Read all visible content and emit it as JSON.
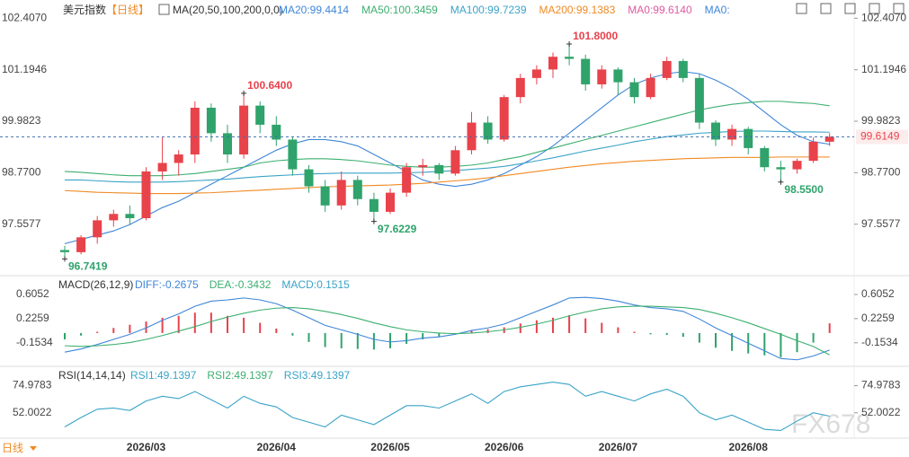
{
  "chart_data": {
    "type": "candlestick",
    "title": "美元指数",
    "period": "【日线】",
    "ma_label": "MA(20,50,100,200,0,0)",
    "extra_legend": [
      "MA0:99.6140",
      "MA0:"
    ],
    "timeframe": "日线",
    "watermark": "FX678",
    "up_color": "#e8424b",
    "down_color": "#2fa36b",
    "ylim": [
      96.39,
      102.73
    ],
    "yticks": [
      {
        "value": 97.5577,
        "label": "97.5577"
      },
      {
        "value": 98.77,
        "label": "98.7700"
      },
      {
        "value": 99.9823,
        "label": "99.9823"
      },
      {
        "value": 101.1946,
        "label": "101.1946"
      },
      {
        "value": 102.407,
        "label": "102.4070"
      }
    ],
    "last_price": 99.6149,
    "categories": [
      null,
      null,
      null,
      null,
      null,
      "2026/03",
      null,
      null,
      null,
      null,
      null,
      null,
      null,
      "2026/04",
      null,
      null,
      null,
      null,
      null,
      null,
      "2026/05",
      null,
      null,
      null,
      null,
      null,
      null,
      "2026/06",
      null,
      null,
      null,
      null,
      null,
      null,
      "2026/07",
      null,
      null,
      null,
      null,
      null,
      null,
      null,
      "2026/08",
      null,
      null,
      null,
      null,
      null
    ],
    "candles": [
      [
        96.95,
        97.05,
        96.7419,
        96.9
      ],
      [
        96.9,
        97.3,
        96.85,
        97.25
      ],
      [
        97.25,
        97.75,
        97.1,
        97.65
      ],
      [
        97.65,
        97.9,
        97.5,
        97.8
      ],
      [
        97.8,
        98.0,
        97.55,
        97.7
      ],
      [
        97.7,
        98.9,
        97.65,
        98.8
      ],
      [
        98.8,
        99.6,
        98.6,
        99.0
      ],
      [
        99.0,
        99.3,
        98.7,
        99.2
      ],
      [
        99.2,
        100.45,
        99.0,
        100.3
      ],
      [
        100.3,
        100.4,
        99.5,
        99.7
      ],
      [
        99.7,
        99.9,
        99.0,
        99.2
      ],
      [
        99.2,
        100.64,
        99.1,
        100.35
      ],
      [
        100.35,
        100.45,
        99.7,
        99.9
      ],
      [
        99.9,
        100.1,
        99.4,
        99.55
      ],
      [
        99.55,
        99.6,
        98.7,
        98.85
      ],
      [
        98.85,
        98.95,
        98.3,
        98.45
      ],
      [
        98.45,
        98.6,
        97.85,
        98.0
      ],
      [
        98.0,
        98.8,
        97.9,
        98.6
      ],
      [
        98.6,
        98.7,
        98.0,
        98.15
      ],
      [
        98.15,
        98.3,
        97.6229,
        97.85
      ],
      [
        97.85,
        98.4,
        97.8,
        98.3
      ],
      [
        98.3,
        99.0,
        98.2,
        98.9
      ],
      [
        98.9,
        99.1,
        98.7,
        98.95
      ],
      [
        98.95,
        99.0,
        98.6,
        98.75
      ],
      [
        98.75,
        99.4,
        98.7,
        99.3
      ],
      [
        99.3,
        100.2,
        99.2,
        99.95
      ],
      [
        99.95,
        100.1,
        99.45,
        99.55
      ],
      [
        99.55,
        100.6,
        99.5,
        100.55
      ],
      [
        100.55,
        101.1,
        100.4,
        101.0
      ],
      [
        101.0,
        101.3,
        100.85,
        101.2
      ],
      [
        101.2,
        101.6,
        101.0,
        101.5
      ],
      [
        101.5,
        101.8,
        101.3,
        101.45
      ],
      [
        101.45,
        101.55,
        100.7,
        100.85
      ],
      [
        100.85,
        101.3,
        100.75,
        101.2
      ],
      [
        101.2,
        101.25,
        100.6,
        100.9
      ],
      [
        100.9,
        101.0,
        100.4,
        100.55
      ],
      [
        100.55,
        101.1,
        100.5,
        101.0
      ],
      [
        101.0,
        101.5,
        100.95,
        101.4
      ],
      [
        101.4,
        101.45,
        100.9,
        101.0
      ],
      [
        101.0,
        101.1,
        99.8,
        99.95
      ],
      [
        99.95,
        100.0,
        99.4,
        99.55
      ],
      [
        99.55,
        99.9,
        99.4,
        99.8
      ],
      [
        99.8,
        99.85,
        99.2,
        99.35
      ],
      [
        99.35,
        99.4,
        98.8,
        98.9
      ],
      [
        98.9,
        99.05,
        98.55,
        98.85
      ],
      [
        98.85,
        99.1,
        98.75,
        99.05
      ],
      [
        99.05,
        99.6,
        99.0,
        99.5
      ],
      [
        99.5,
        99.7,
        99.4,
        99.6149
      ]
    ],
    "annotations": [
      {
        "label": "96.7419",
        "value": 96.7419,
        "index": 0,
        "color": "#2fa36b"
      },
      {
        "label": "100.6400",
        "value": 100.64,
        "index": 11,
        "color": "#e8424b"
      },
      {
        "label": "97.6229",
        "value": 97.6229,
        "index": 19,
        "color": "#2fa36b"
      },
      {
        "label": "101.8000",
        "value": 101.8,
        "index": 31,
        "color": "#e8424b"
      },
      {
        "label": "98.5500",
        "value": 98.55,
        "index": 44,
        "color": "#2fa36b"
      }
    ],
    "series": [
      {
        "name": "MA20",
        "legend": "MA20:99.4414",
        "color": "#3f86d8",
        "values": [
          97.1,
          97.2,
          97.3,
          97.4,
          97.55,
          97.75,
          97.95,
          98.1,
          98.3,
          98.5,
          98.7,
          98.9,
          99.1,
          99.3,
          99.45,
          99.55,
          99.55,
          99.5,
          99.4,
          99.2,
          99.0,
          98.8,
          98.6,
          98.5,
          98.45,
          98.5,
          98.6,
          98.75,
          98.95,
          99.15,
          99.4,
          99.7,
          100.0,
          100.3,
          100.6,
          100.85,
          101.0,
          101.1,
          101.15,
          101.1,
          100.95,
          100.75,
          100.5,
          100.2,
          99.9,
          99.65,
          99.5,
          99.4414
        ]
      },
      {
        "name": "MA50",
        "legend": "MA50:100.3459",
        "color": "#3caf70",
        "values": [
          98.8,
          98.78,
          98.75,
          98.72,
          98.7,
          98.7,
          98.7,
          98.72,
          98.75,
          98.8,
          98.85,
          98.9,
          99.0,
          99.05,
          99.08,
          99.1,
          99.1,
          99.08,
          99.05,
          99.0,
          98.95,
          98.92,
          98.9,
          98.9,
          98.92,
          98.95,
          99.0,
          99.08,
          99.15,
          99.25,
          99.35,
          99.45,
          99.55,
          99.65,
          99.75,
          99.85,
          99.95,
          100.05,
          100.15,
          100.25,
          100.32,
          100.38,
          100.42,
          100.45,
          100.45,
          100.42,
          100.4,
          100.3459
        ]
      },
      {
        "name": "MA100",
        "legend": "MA100:99.7239",
        "color": "#3aa3c8",
        "values": [
          98.6,
          98.6,
          98.58,
          98.56,
          98.55,
          98.55,
          98.55,
          98.56,
          98.58,
          98.6,
          98.62,
          98.65,
          98.68,
          98.7,
          98.72,
          98.74,
          98.75,
          98.76,
          98.76,
          98.76,
          98.76,
          98.77,
          98.78,
          98.8,
          98.82,
          98.85,
          98.88,
          98.92,
          98.98,
          99.05,
          99.12,
          99.2,
          99.28,
          99.35,
          99.42,
          99.5,
          99.56,
          99.62,
          99.66,
          99.7,
          99.72,
          99.74,
          99.75,
          99.75,
          99.74,
          99.73,
          99.73,
          99.7239
        ]
      },
      {
        "name": "MA200",
        "legend": "MA200:99.1383",
        "color": "#f08a24",
        "values": [
          98.35,
          98.33,
          98.31,
          98.3,
          98.29,
          98.28,
          98.28,
          98.28,
          98.29,
          98.3,
          98.32,
          98.34,
          98.36,
          98.38,
          98.4,
          98.42,
          98.44,
          98.45,
          98.46,
          98.47,
          98.48,
          98.5,
          98.52,
          98.55,
          98.58,
          98.61,
          98.65,
          98.7,
          98.75,
          98.8,
          98.85,
          98.9,
          98.94,
          98.98,
          99.01,
          99.04,
          99.06,
          99.08,
          99.1,
          99.11,
          99.12,
          99.13,
          99.13,
          99.13,
          99.14,
          99.14,
          99.14,
          99.1383
        ]
      }
    ],
    "macd": {
      "label": "MACD(26,12,9)",
      "ylim": [
        -0.48,
        0.83
      ],
      "yticks": [
        -0.1534,
        0.2259,
        0.6052
      ],
      "diff": {
        "legend": "DIFF:-0.2675",
        "color": "#3f86d8",
        "values": [
          -0.3,
          -0.25,
          -0.18,
          -0.1,
          -0.02,
          0.08,
          0.2,
          0.3,
          0.42,
          0.5,
          0.52,
          0.55,
          0.52,
          0.46,
          0.36,
          0.24,
          0.12,
          0.05,
          -0.02,
          -0.1,
          -0.14,
          -0.12,
          -0.08,
          -0.06,
          -0.02,
          0.04,
          0.08,
          0.14,
          0.24,
          0.34,
          0.44,
          0.55,
          0.56,
          0.54,
          0.5,
          0.44,
          0.4,
          0.38,
          0.34,
          0.22,
          0.08,
          -0.04,
          -0.16,
          -0.28,
          -0.4,
          -0.42,
          -0.36,
          -0.2675
        ]
      },
      "dea": {
        "legend": "DEA:-0.3432",
        "color": "#3caf70",
        "values": [
          -0.2,
          -0.21,
          -0.2,
          -0.18,
          -0.15,
          -0.1,
          -0.04,
          0.03,
          0.1,
          0.18,
          0.25,
          0.31,
          0.36,
          0.39,
          0.4,
          0.38,
          0.34,
          0.29,
          0.23,
          0.16,
          0.1,
          0.05,
          0.02,
          0.0,
          -0.01,
          0.0,
          0.02,
          0.05,
          0.09,
          0.14,
          0.2,
          0.27,
          0.33,
          0.38,
          0.41,
          0.42,
          0.42,
          0.41,
          0.4,
          0.37,
          0.31,
          0.24,
          0.16,
          0.07,
          -0.02,
          -0.12,
          -0.21,
          -0.3432
        ]
      },
      "hist": {
        "legend": "MACD:0.1515",
        "color": "#3aa3c8",
        "values": [
          -0.1,
          -0.04,
          0.02,
          0.08,
          0.13,
          0.18,
          0.24,
          0.27,
          0.32,
          0.32,
          0.27,
          0.24,
          0.16,
          0.07,
          -0.04,
          -0.14,
          -0.22,
          -0.24,
          -0.25,
          -0.26,
          -0.24,
          -0.17,
          -0.1,
          -0.06,
          -0.01,
          0.04,
          0.06,
          0.09,
          0.15,
          0.2,
          0.24,
          0.28,
          0.23,
          0.16,
          0.09,
          0.02,
          -0.02,
          -0.03,
          -0.06,
          -0.15,
          -0.23,
          -0.28,
          -0.32,
          -0.35,
          -0.38,
          -0.3,
          -0.15,
          0.1515
        ]
      }
    },
    "rsi": {
      "label": "RSI(14,14,14)",
      "ylim": [
        29,
        88.3
      ],
      "yticks": [
        52.0022,
        74.9783
      ],
      "legends": [
        {
          "text": "RSI1:49.1397",
          "color": "#3aa3c8"
        },
        {
          "text": "RSI2:49.1397",
          "color": "#3caf70"
        },
        {
          "text": "RSI3:49.1397",
          "color": "#3aa3c8"
        }
      ],
      "color": "#3aa3c8",
      "values": [
        40,
        48,
        55,
        56,
        54,
        62,
        66,
        64,
        70,
        63,
        56,
        66,
        60,
        57,
        48,
        44,
        40,
        50,
        46,
        42,
        50,
        58,
        58,
        56,
        62,
        68,
        60,
        70,
        74,
        76,
        78,
        76,
        66,
        70,
        66,
        62,
        68,
        72,
        66,
        52,
        46,
        50,
        44,
        38,
        37,
        45,
        52,
        49.1397
      ]
    }
  }
}
